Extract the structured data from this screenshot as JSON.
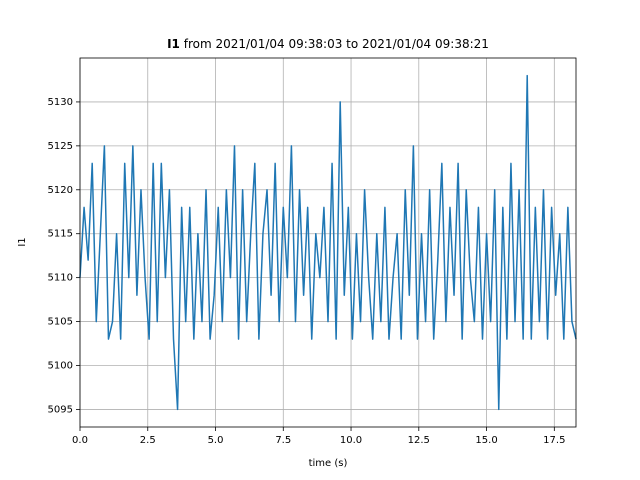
{
  "chart_data": {
    "type": "line",
    "title_bold": "I1",
    "title": "from 2021/01/04 09:38:03 to 2021/01/04 09:38:21",
    "xlabel": "time (s)",
    "ylabel": "I1",
    "x": [
      0.0,
      0.15,
      0.3,
      0.45,
      0.6,
      0.75,
      0.9,
      1.05,
      1.2,
      1.35,
      1.5,
      1.65,
      1.8,
      1.95,
      2.1,
      2.25,
      2.4,
      2.55,
      2.7,
      2.85,
      3.0,
      3.15,
      3.3,
      3.45,
      3.6,
      3.75,
      3.9,
      4.05,
      4.2,
      4.35,
      4.5,
      4.65,
      4.8,
      4.95,
      5.1,
      5.25,
      5.4,
      5.55,
      5.7,
      5.85,
      6.0,
      6.15,
      6.3,
      6.45,
      6.6,
      6.75,
      6.9,
      7.05,
      7.2,
      7.35,
      7.5,
      7.65,
      7.8,
      7.95,
      8.1,
      8.25,
      8.4,
      8.55,
      8.7,
      8.85,
      9.0,
      9.15,
      9.3,
      9.45,
      9.6,
      9.75,
      9.9,
      10.05,
      10.2,
      10.35,
      10.5,
      10.65,
      10.8,
      10.95,
      11.1,
      11.25,
      11.4,
      11.55,
      11.7,
      11.85,
      12.0,
      12.15,
      12.3,
      12.45,
      12.6,
      12.75,
      12.9,
      13.05,
      13.2,
      13.35,
      13.5,
      13.65,
      13.8,
      13.95,
      14.1,
      14.25,
      14.4,
      14.55,
      14.7,
      14.85,
      15.0,
      15.15,
      15.3,
      15.45,
      15.6,
      15.75,
      15.9,
      16.05,
      16.2,
      16.35,
      16.5,
      16.65,
      16.8,
      16.95,
      17.1,
      17.25,
      17.4,
      17.55,
      17.7,
      17.85,
      18.0,
      18.15,
      18.3
    ],
    "series": [
      {
        "color": "#1f77b4",
        "values": [
          5110,
          5118,
          5112,
          5123,
          5105,
          5115,
          5125,
          5103,
          5105,
          5115,
          5103,
          5123,
          5110,
          5125,
          5108,
          5120,
          5110,
          5103,
          5123,
          5105,
          5123,
          5110,
          5120,
          5103,
          5095,
          5118,
          5105,
          5118,
          5103,
          5115,
          5105,
          5120,
          5103,
          5108,
          5118,
          5105,
          5120,
          5110,
          5125,
          5103,
          5120,
          5105,
          5115,
          5123,
          5103,
          5115,
          5120,
          5108,
          5123,
          5105,
          5118,
          5110,
          5125,
          5105,
          5120,
          5108,
          5118,
          5103,
          5115,
          5110,
          5118,
          5105,
          5123,
          5103,
          5130,
          5108,
          5118,
          5103,
          5115,
          5105,
          5120,
          5110,
          5103,
          5115,
          5105,
          5118,
          5103,
          5110,
          5115,
          5103,
          5120,
          5108,
          5125,
          5103,
          5115,
          5105,
          5120,
          5103,
          5112,
          5123,
          5105,
          5118,
          5108,
          5123,
          5103,
          5120,
          5110,
          5105,
          5118,
          5103,
          5115,
          5105,
          5120,
          5095,
          5118,
          5103,
          5123,
          5105,
          5120,
          5103,
          5133,
          5103,
          5118,
          5105,
          5120,
          5103,
          5118,
          5108,
          5115,
          5103,
          5118,
          5105,
          5103
        ]
      }
    ],
    "xlim": [
      0,
      18.3
    ],
    "ylim": [
      5093,
      5135
    ],
    "xticks": [
      {
        "value": 0,
        "label": "0.0"
      },
      2.5,
      {
        "value": 5,
        "label": "5.0"
      },
      7.5,
      {
        "value": 10,
        "label": "10.0"
      },
      12.5,
      {
        "value": 15,
        "label": "15.0"
      },
      17.5
    ],
    "yticks": [
      5095,
      5100,
      5105,
      5110,
      5115,
      5120,
      5125,
      5130
    ],
    "grid": true
  }
}
